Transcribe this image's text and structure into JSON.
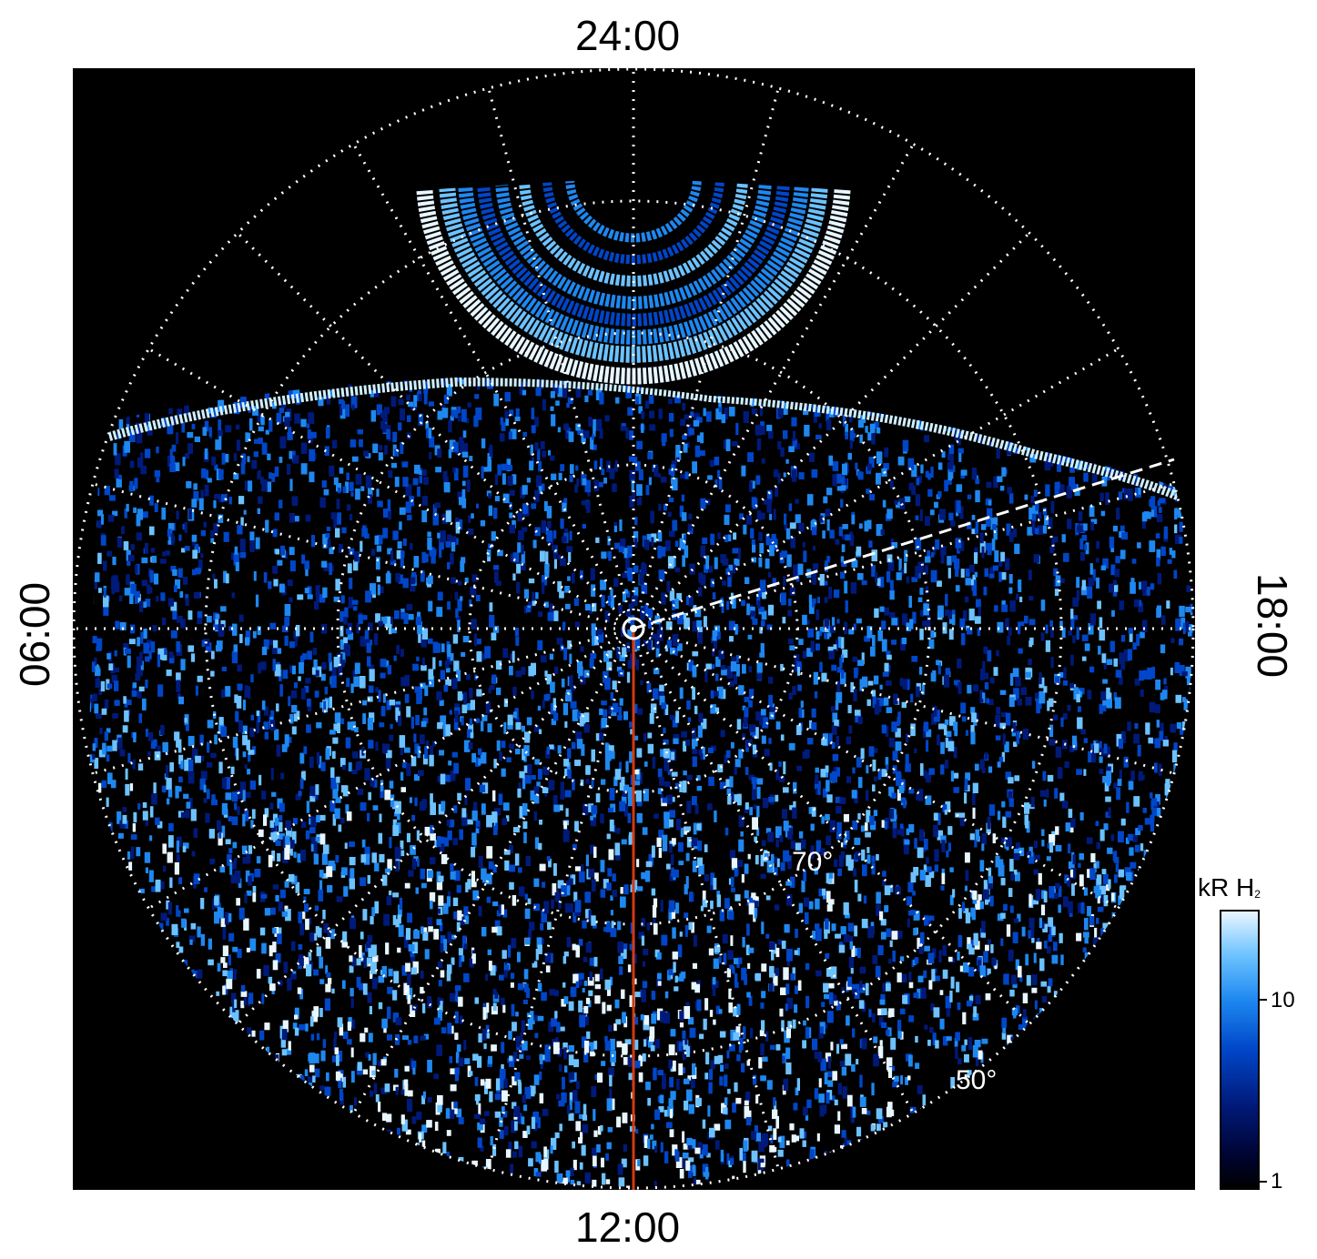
{
  "axes": {
    "top": "24:00",
    "bottom": "12:00",
    "left": "06:00",
    "right": "18:00"
  },
  "latitude_labels": [
    "70°",
    "50°"
  ],
  "colorbar": {
    "title": "kR H",
    "title_subscript": "2",
    "ticks": [
      "10",
      "1"
    ],
    "colors": [
      "#000000",
      "#001a7a",
      "#0046c8",
      "#1e88f0",
      "#6cc2ff",
      "#e8f6ff"
    ]
  },
  "accent_colors": {
    "meridian_line": "#d03a10",
    "grid": "#ffffff",
    "background": "#000000"
  }
}
